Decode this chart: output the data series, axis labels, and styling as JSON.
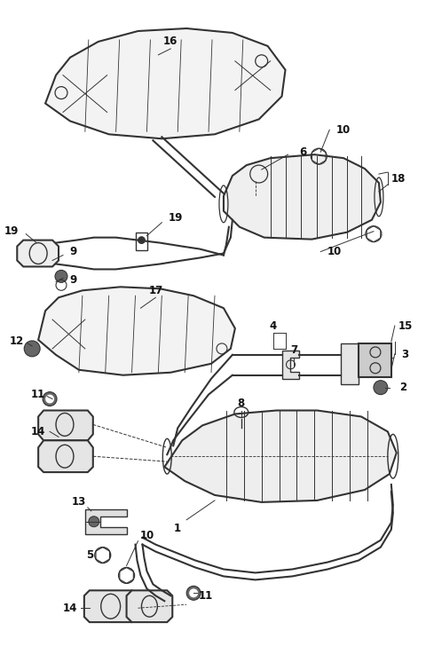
{
  "bg_color": "#ffffff",
  "line_color": "#333333",
  "text_color": "#111111",
  "figsize": [
    4.8,
    7.55
  ],
  "dpi": 100,
  "xlim": [
    0,
    4.8
  ],
  "ylim": [
    0,
    7.55
  ]
}
